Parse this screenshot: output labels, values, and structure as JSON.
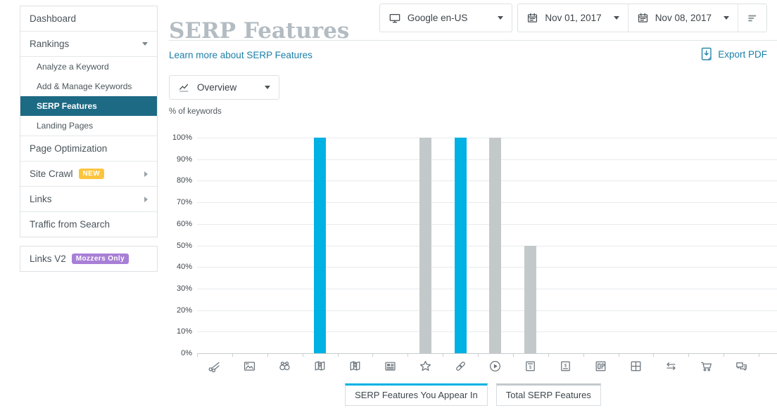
{
  "sidebar": {
    "items": [
      {
        "label": "Dashboard"
      },
      {
        "label": "Rankings"
      },
      {
        "label": "Analyze a Keyword"
      },
      {
        "label": "Add & Manage Keywords"
      },
      {
        "label": "SERP Features",
        "selected": true
      },
      {
        "label": "Landing Pages"
      },
      {
        "label": "Page Optimization"
      },
      {
        "label": "Site Crawl",
        "badge": "NEW"
      },
      {
        "label": "Links"
      },
      {
        "label": "Traffic from Search"
      }
    ],
    "footer_item": {
      "label": "Links V2",
      "badge": "Mozzers Only"
    }
  },
  "header": {
    "page_title": "SERP Features",
    "search_engine": "Google en-US",
    "date_start": "Nov 01, 2017",
    "date_end": "Nov 08, 2017"
  },
  "toolbar": {
    "learn_more": "Learn more about SERP Features",
    "export_pdf": "Export PDF",
    "view_selector": "Overview"
  },
  "chart_data": {
    "type": "bar",
    "title": "",
    "ylabel": "% of keywords",
    "ylim": [
      0,
      100
    ],
    "y_ticks": [
      "100%",
      "90%",
      "80%",
      "70%",
      "60%",
      "50%",
      "40%",
      "30%",
      "20%",
      "10%",
      "0%"
    ],
    "grid": true,
    "legend_position": "bottom",
    "categories": [
      "scissors",
      "image",
      "binoculars",
      "map-pin",
      "map-pin-dollar",
      "newspaper",
      "star",
      "link",
      "play-circle",
      "dollar-page",
      "dollar-page-underline",
      "panel",
      "grid-squares",
      "swap-arrows",
      "shopping-cart",
      "speech-bubbles"
    ],
    "series": [
      {
        "name": "SERP Features You Appear In",
        "color": "#00b1e4",
        "values": [
          0,
          0,
          0,
          100,
          0,
          0,
          0,
          100,
          0,
          0,
          0,
          0,
          0,
          0,
          0,
          0
        ]
      },
      {
        "name": "Total SERP Features",
        "color": "#c3c9cb",
        "values": [
          0,
          0,
          0,
          0,
          0,
          0,
          100,
          0,
          100,
          50,
          0,
          0,
          0,
          0,
          0,
          0
        ]
      }
    ]
  },
  "colors": {
    "accent_blue": "#00b1e4",
    "bar_gray": "#c3c9cb",
    "selected_nav": "#1d6a84",
    "link": "#1b7fa8",
    "badge_new": "#fcc43e",
    "badge_mozzers": "#a87fd6",
    "title_gray": "#b3bcc2"
  }
}
